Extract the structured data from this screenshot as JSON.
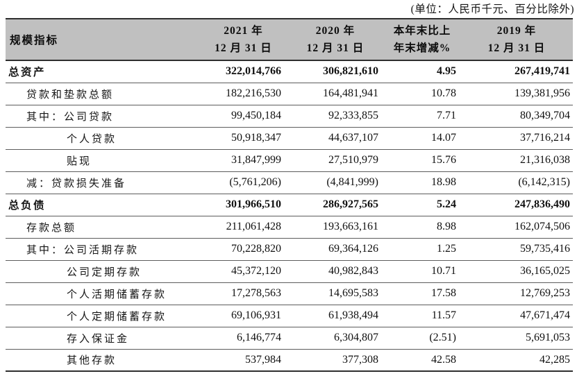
{
  "unit_note": "(单位：人民币千元、百分比除外)",
  "colors": {
    "header_bg": "#c0c0c0",
    "border_dark": "#2e2e2e",
    "border_light": "#5c5c5c",
    "text": "#111111"
  },
  "table": {
    "columns": {
      "label": "规模指标",
      "y2021": [
        "2021 年",
        "12 月 31 日"
      ],
      "y2020": [
        "2020 年",
        "12 月 31 日"
      ],
      "change": [
        "本年末比上",
        "年末增减%"
      ],
      "y2019": [
        "2019 年",
        "12 月 31 日"
      ]
    },
    "rows": [
      {
        "label": "总资产",
        "indent": 0,
        "bold": true,
        "v2021": "322,014,766",
        "v2020": "306,821,610",
        "change": "4.95",
        "v2019": "267,419,741"
      },
      {
        "label": "贷款和垫款总额",
        "indent": 1,
        "bold": false,
        "v2021": "182,216,530",
        "v2020": "164,481,941",
        "change": "10.78",
        "v2019": "139,381,956"
      },
      {
        "label": "其中：公司贷款",
        "indent": 1,
        "bold": false,
        "v2021": "99,450,184",
        "v2020": "92,333,855",
        "change": "7.71",
        "v2019": "80,349,704"
      },
      {
        "label": "个人贷款",
        "indent": 2,
        "bold": false,
        "v2021": "50,918,347",
        "v2020": "44,637,107",
        "change": "14.07",
        "v2019": "37,716,214"
      },
      {
        "label": "贴现",
        "indent": 2,
        "bold": false,
        "v2021": "31,847,999",
        "v2020": "27,510,979",
        "change": "15.76",
        "v2019": "21,316,038"
      },
      {
        "label": "减：贷款损失准备",
        "indent": 1,
        "bold": false,
        "v2021": "(5,761,206)",
        "v2020": "(4,841,999)",
        "change": "18.98",
        "v2019": "(6,142,315)"
      },
      {
        "label": "总负债",
        "indent": 0,
        "bold": true,
        "v2021": "301,966,510",
        "v2020": "286,927,565",
        "change": "5.24",
        "v2019": "247,836,490"
      },
      {
        "label": "存款总额",
        "indent": 1,
        "bold": false,
        "v2021": "211,061,428",
        "v2020": "193,663,161",
        "change": "8.98",
        "v2019": "162,074,506"
      },
      {
        "label": "其中：公司活期存款",
        "indent": 1,
        "bold": false,
        "v2021": "70,228,820",
        "v2020": "69,364,126",
        "change": "1.25",
        "v2019": "59,735,416"
      },
      {
        "label": "公司定期存款",
        "indent": 2,
        "bold": false,
        "v2021": "45,372,120",
        "v2020": "40,982,843",
        "change": "10.71",
        "v2019": "36,165,025"
      },
      {
        "label": "个人活期储蓄存款",
        "indent": 2,
        "bold": false,
        "v2021": "17,278,563",
        "v2020": "14,695,583",
        "change": "17.58",
        "v2019": "12,769,253"
      },
      {
        "label": "个人定期储蓄存款",
        "indent": 2,
        "bold": false,
        "v2021": "69,106,931",
        "v2020": "61,938,494",
        "change": "11.57",
        "v2019": "47,671,474"
      },
      {
        "label": "存入保证金",
        "indent": 2,
        "bold": false,
        "v2021": "6,146,774",
        "v2020": "6,304,807",
        "change": "(2.51)",
        "v2019": "5,691,053"
      },
      {
        "label": "其他存款",
        "indent": 2,
        "bold": false,
        "v2021": "537,984",
        "v2020": "377,308",
        "change": "42.58",
        "v2019": "42,285"
      }
    ]
  }
}
